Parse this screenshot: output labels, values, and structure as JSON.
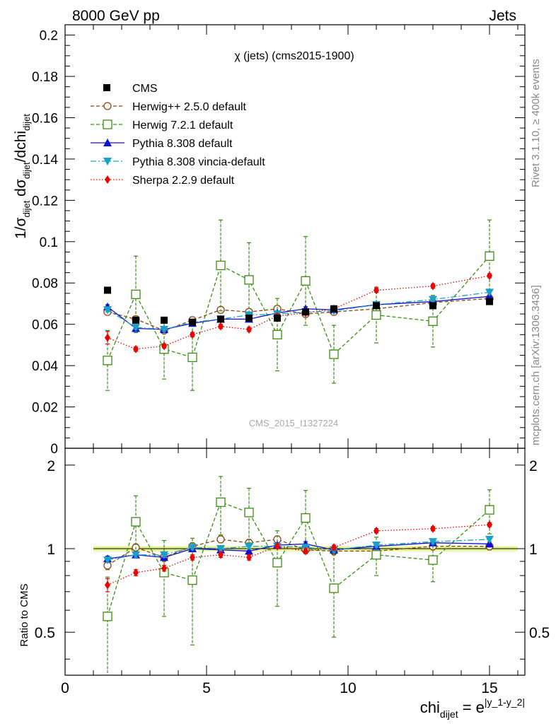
{
  "header": {
    "left": "8000 GeV pp",
    "right": "Jets"
  },
  "side_labels": {
    "top": "Rivet 3.1.10, ≥ 400k events",
    "bottom": "mcplots.cern.ch [arXiv:1306.3436]"
  },
  "chart_data": {
    "type": "scatter",
    "title": "χ (jets) (cms2015-1900)",
    "watermark": "CMS_2015_I1327224",
    "xlabel": {
      "main": "chi",
      "sub": "dijet",
      "mid": " = e",
      "sup": "|y_1-y_2|"
    },
    "ylabel": {
      "a": "1/σ",
      "a_sub": "dijet",
      "b": " dσ",
      "b_sub": "dijet",
      "c": "/dchi",
      "c_sub": "dijet"
    },
    "ratio_ylabel": "Ratio to CMS",
    "xlim": [
      0,
      16.25
    ],
    "ylim": [
      0,
      0.205
    ],
    "ratio_ylim": [
      0.35,
      2.3
    ],
    "x_ticks": [
      0,
      5,
      10,
      15
    ],
    "x_tick_labels": [
      "0",
      "5",
      "10",
      "15"
    ],
    "y_ticks": [
      0,
      0.02,
      0.04,
      0.06,
      0.08,
      0.1,
      0.12,
      0.14,
      0.16,
      0.18,
      0.2
    ],
    "y_tick_labels": [
      "0",
      "0.02",
      "0.04",
      "0.06",
      "0.08",
      "0.1",
      "0.12",
      "0.14",
      "0.16",
      "0.18",
      "0.2"
    ],
    "ratio_ticks": [
      0.5,
      1,
      2
    ],
    "ratio_tick_labels": [
      "0.5",
      "1",
      "2"
    ],
    "x": [
      1.5,
      2.5,
      3.5,
      4.5,
      5.5,
      6.5,
      7.5,
      8.5,
      9.5,
      11,
      13,
      15
    ],
    "x_lo": [
      1,
      2,
      3,
      4,
      5,
      6,
      7,
      8,
      9,
      10,
      12,
      14
    ],
    "x_hi": [
      2,
      3,
      4,
      5,
      6,
      7,
      8,
      9,
      10,
      12,
      14,
      16
    ],
    "data": {
      "name": "CMS",
      "color": "#000000",
      "values": [
        0.0765,
        0.062,
        0.062,
        0.061,
        0.0625,
        0.063,
        0.063,
        0.066,
        0.0675,
        0.069,
        0.069,
        0.071
      ],
      "ratio_band": 0.02
    },
    "series": [
      {
        "name": "Herwig++ 2.5.0 default",
        "color": "#8B4513",
        "marker": "circle-open",
        "dash": "5,3",
        "values": [
          0.066,
          0.0625,
          0.057,
          0.062,
          0.067,
          0.066,
          0.0675,
          0.065,
          0.066,
          0.0675,
          0.0705,
          0.0725
        ],
        "errors": [
          0.0015,
          0.0015,
          0.0015,
          0.0015,
          0.0015,
          0.0015,
          0.0015,
          0.0015,
          0.0015,
          0.0015,
          0.0015,
          0.0015
        ],
        "ratio": [
          0.87,
          1.01,
          0.93,
          1.02,
          1.08,
          1.05,
          1.08,
          0.99,
          0.98,
          0.98,
          1.02,
          1.02
        ],
        "ratio_err": [
          0.03,
          0.03,
          0.03,
          0.03,
          0.03,
          0.03,
          0.03,
          0.03,
          0.03,
          0.03,
          0.03,
          0.03
        ]
      },
      {
        "name": "Herwig 7.2.1 default",
        "color": "#3a8d10",
        "marker": "square-open",
        "dash": "5,3",
        "values": [
          0.0425,
          0.0745,
          0.048,
          0.044,
          0.0885,
          0.0815,
          0.055,
          0.081,
          0.0455,
          0.0645,
          0.0615,
          0.093
        ],
        "errors": [
          0.0145,
          0.0185,
          0.0145,
          0.016,
          0.022,
          0.018,
          0.0175,
          0.0215,
          0.014,
          0.0135,
          0.0125,
          0.0175
        ],
        "ratio": [
          0.57,
          1.25,
          0.82,
          0.77,
          1.47,
          1.35,
          0.89,
          1.29,
          0.72,
          0.95,
          0.91,
          1.38
        ],
        "ratio_err": [
          0.22,
          0.3,
          0.25,
          0.32,
          0.35,
          0.3,
          0.27,
          0.33,
          0.24,
          0.15,
          0.15,
          0.25
        ]
      },
      {
        "name": "Pythia 8.308 default",
        "color": "#1010d0",
        "marker": "triangle-up",
        "dash": "",
        "values": [
          0.0685,
          0.058,
          0.0575,
          0.0605,
          0.0625,
          0.0625,
          0.0655,
          0.0675,
          0.067,
          0.0695,
          0.071,
          0.0735
        ],
        "errors": [
          0.001,
          0.001,
          0.001,
          0.001,
          0.001,
          0.001,
          0.001,
          0.001,
          0.001,
          0.001,
          0.001,
          0.001
        ],
        "ratio": [
          0.92,
          0.95,
          0.93,
          1.0,
          0.99,
          0.98,
          1.03,
          1.04,
          0.99,
          1.02,
          1.05,
          1.04
        ],
        "ratio_err": [
          0.02,
          0.02,
          0.02,
          0.02,
          0.02,
          0.02,
          0.02,
          0.02,
          0.02,
          0.02,
          0.02,
          0.02
        ]
      },
      {
        "name": "Pythia 8.308 vincia-default",
        "color": "#1aa0c8",
        "marker": "triangle-down",
        "dash": "8,3,2,3",
        "values": [
          0.067,
          0.0585,
          0.0575,
          0.061,
          0.0625,
          0.0645,
          0.065,
          0.066,
          0.0665,
          0.0695,
          0.072,
          0.0755
        ],
        "errors": [
          0.001,
          0.001,
          0.001,
          0.001,
          0.001,
          0.001,
          0.001,
          0.001,
          0.001,
          0.001,
          0.001,
          0.001
        ],
        "ratio": [
          0.91,
          0.95,
          0.95,
          1.01,
          1.0,
          1.02,
          1.02,
          1.01,
          0.99,
          1.03,
          1.06,
          1.08
        ],
        "ratio_err": [
          0.02,
          0.02,
          0.02,
          0.02,
          0.02,
          0.02,
          0.02,
          0.02,
          0.02,
          0.02,
          0.02,
          0.02
        ]
      },
      {
        "name": "Sherpa 2.2.9 default",
        "color": "#ee0000",
        "marker": "diamond",
        "dash": "1.5,2.5",
        "values": [
          0.0535,
          0.048,
          0.0495,
          0.055,
          0.059,
          0.0575,
          0.064,
          0.0655,
          0.0675,
          0.0765,
          0.0785,
          0.0835
        ],
        "errors": [
          0.003,
          0.001,
          0.001,
          0.001,
          0.001,
          0.001,
          0.001,
          0.001,
          0.001,
          0.001,
          0.001,
          0.001
        ],
        "ratio": [
          0.74,
          0.82,
          0.85,
          0.93,
          0.95,
          0.93,
          1.02,
          0.98,
          1.01,
          1.16,
          1.18,
          1.22
        ],
        "ratio_err": [
          0.04,
          0.02,
          0.02,
          0.02,
          0.02,
          0.02,
          0.02,
          0.02,
          0.02,
          0.02,
          0.02,
          0.02
        ]
      }
    ]
  }
}
